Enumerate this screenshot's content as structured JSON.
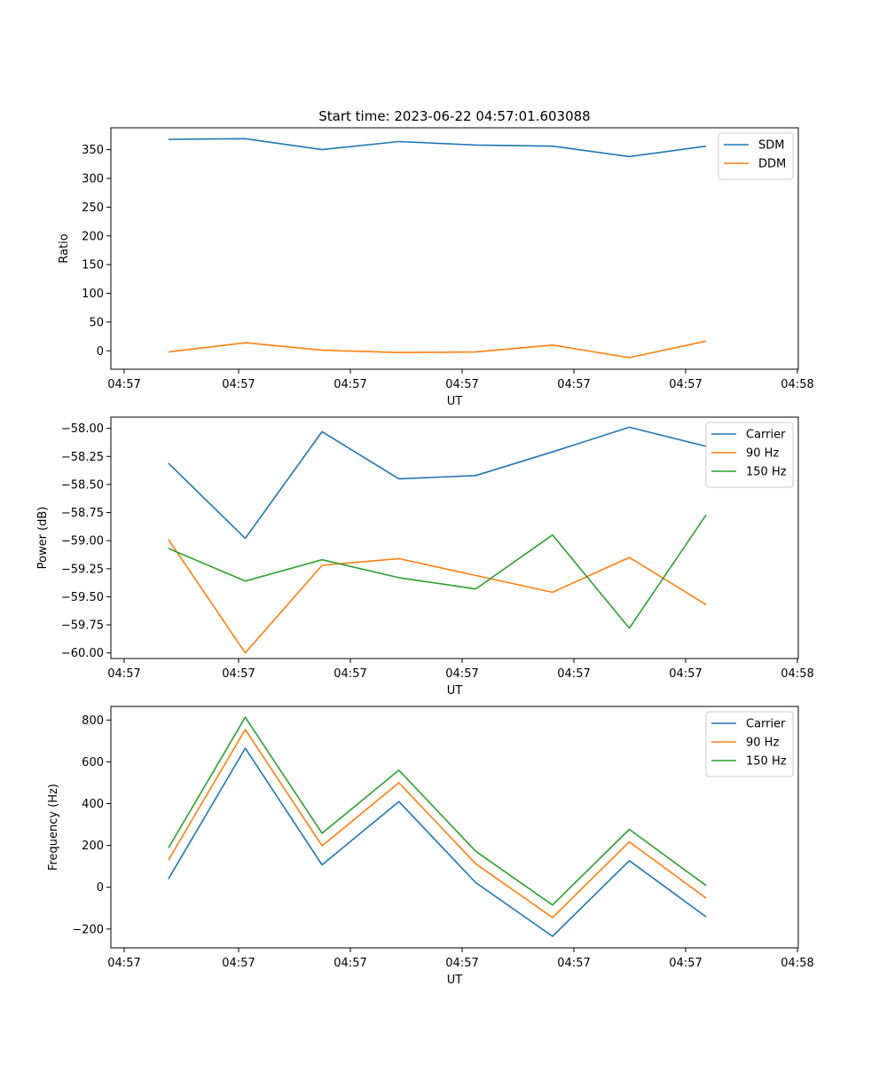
{
  "figure": {
    "title": "Start time: 2023-06-22 04:57:01.603088"
  },
  "chart_data": [
    {
      "type": "line",
      "xlabel": "UT",
      "ylabel": "Ratio",
      "x": [
        1,
        2,
        3,
        4,
        5,
        6,
        7,
        8
      ],
      "xtick_labels": [
        "04:57",
        "04:57",
        "04:57",
        "04:57",
        "04:57",
        "04:57",
        "04:58"
      ],
      "ylim": [
        -32,
        388
      ],
      "yticks": [
        0,
        50,
        100,
        150,
        200,
        250,
        300,
        350
      ],
      "ytick_labels": [
        "0",
        "50",
        "100",
        "150",
        "200",
        "250",
        "300",
        "350"
      ],
      "legend_position": "top-right",
      "grid": false,
      "series": [
        {
          "name": "SDM",
          "color": "#1f77b4",
          "values": [
            368,
            369,
            350,
            364,
            358,
            356,
            338,
            356
          ]
        },
        {
          "name": "DDM",
          "color": "#ff7f0e",
          "values": [
            -2,
            14,
            1,
            -3,
            -2,
            10,
            -12,
            17
          ]
        }
      ]
    },
    {
      "type": "line",
      "xlabel": "UT",
      "ylabel": "Power (dB)",
      "x": [
        1,
        2,
        3,
        4,
        5,
        6,
        7,
        8
      ],
      "xtick_labels": [
        "04:57",
        "04:57",
        "04:57",
        "04:57",
        "04:57",
        "04:57",
        "04:58"
      ],
      "ylim": [
        -60.05,
        -57.9
      ],
      "yticks": [
        -60.0,
        -59.75,
        -59.5,
        -59.25,
        -59.0,
        -58.75,
        -58.5,
        -58.25,
        -58.0
      ],
      "ytick_labels": [
        "−60.00",
        "−59.75",
        "−59.50",
        "−59.25",
        "−59.00",
        "−58.75",
        "−58.50",
        "−58.25",
        "−58.00"
      ],
      "legend_position": "top-right",
      "grid": false,
      "series": [
        {
          "name": "Carrier",
          "color": "#1f77b4",
          "values": [
            -58.31,
            -58.98,
            -58.03,
            -58.45,
            -58.42,
            -58.21,
            -57.99,
            -58.16
          ]
        },
        {
          "name": "90 Hz",
          "color": "#ff7f0e",
          "values": [
            -58.99,
            -60.0,
            -59.22,
            -59.16,
            -59.31,
            -59.46,
            -59.15,
            -59.57
          ]
        },
        {
          "name": "150 Hz",
          "color": "#2ca02c",
          "values": [
            -59.07,
            -59.36,
            -59.17,
            -59.33,
            -59.43,
            -58.95,
            -59.78,
            -58.77
          ]
        }
      ]
    },
    {
      "type": "line",
      "xlabel": "UT",
      "ylabel": "Frequency (Hz)",
      "x": [
        1,
        2,
        3,
        4,
        5,
        6,
        7,
        8
      ],
      "xtick_labels": [
        "04:57",
        "04:57",
        "04:57",
        "04:57",
        "04:57",
        "04:57",
        "04:58"
      ],
      "ylim": [
        -290,
        865
      ],
      "yticks": [
        -200,
        0,
        200,
        400,
        600,
        800
      ],
      "ytick_labels": [
        "−200",
        "0",
        "200",
        "400",
        "600",
        "800"
      ],
      "legend_position": "top-right",
      "grid": false,
      "series": [
        {
          "name": "Carrier",
          "color": "#1f77b4",
          "values": [
            40,
            665,
            107,
            410,
            22,
            -235,
            127,
            -142
          ]
        },
        {
          "name": "90 Hz",
          "color": "#ff7f0e",
          "values": [
            130,
            755,
            198,
            500,
            112,
            -145,
            217,
            -52
          ]
        },
        {
          "name": "150 Hz",
          "color": "#2ca02c",
          "values": [
            188,
            813,
            258,
            560,
            172,
            -85,
            277,
            8
          ]
        }
      ]
    }
  ]
}
